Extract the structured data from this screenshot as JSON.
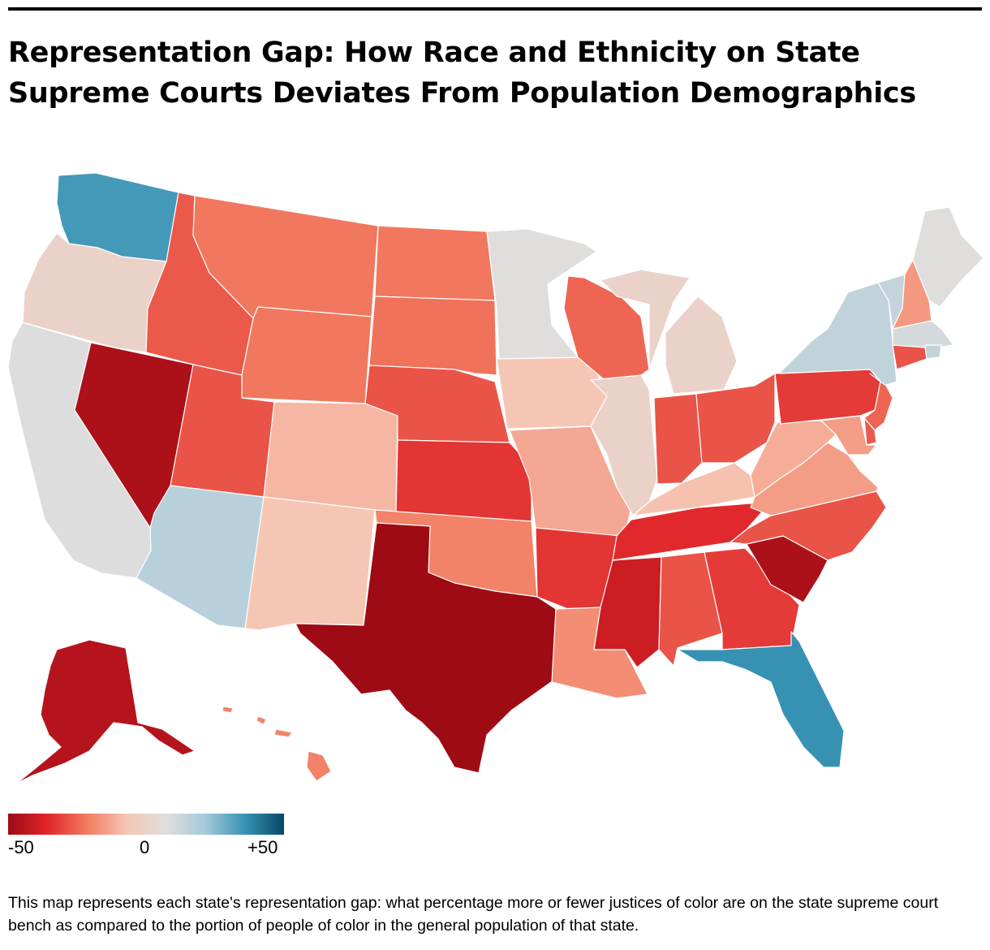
{
  "header": {
    "title": "Representation Gap: How Race and Ethnicity on State Supreme Courts Deviates From Population Demographics"
  },
  "legend": {
    "min_label": "-50",
    "mid_label": "0",
    "max_label": "+50",
    "min_value": -50,
    "max_value": 50,
    "colors": [
      "#9e0b14",
      "#e0252a",
      "#f27b60",
      "#f6c6b4",
      "#dfdedc",
      "#a6cadb",
      "#3792b3",
      "#084868"
    ]
  },
  "chart_data": {
    "type": "choropleth",
    "value_range": [
      -50,
      50
    ],
    "states": [
      {
        "state": "WA",
        "value": 34
      },
      {
        "state": "OR",
        "value": 0
      },
      {
        "state": "CA",
        "value": 8
      },
      {
        "state": "NV",
        "value": -47
      },
      {
        "state": "ID",
        "value": -27
      },
      {
        "state": "MT",
        "value": -22
      },
      {
        "state": "WY",
        "value": -22
      },
      {
        "state": "UT",
        "value": -28
      },
      {
        "state": "AZ",
        "value": 17
      },
      {
        "state": "CO",
        "value": -10
      },
      {
        "state": "NM",
        "value": -7
      },
      {
        "state": "ND",
        "value": -22
      },
      {
        "state": "SD",
        "value": -23
      },
      {
        "state": "NE",
        "value": -28
      },
      {
        "state": "KS",
        "value": -33
      },
      {
        "state": "OK",
        "value": -20
      },
      {
        "state": "TX",
        "value": -55
      },
      {
        "state": "MN",
        "value": 7
      },
      {
        "state": "IA",
        "value": -7
      },
      {
        "state": "MO",
        "value": -13
      },
      {
        "state": "AR",
        "value": -33
      },
      {
        "state": "LA",
        "value": -18
      },
      {
        "state": "WI",
        "value": -25
      },
      {
        "state": "IL",
        "value": 0
      },
      {
        "state": "MI",
        "value": 0
      },
      {
        "state": "IN",
        "value": -28
      },
      {
        "state": "OH",
        "value": -28
      },
      {
        "state": "KY",
        "value": -8
      },
      {
        "state": "TN",
        "value": -35
      },
      {
        "state": "MS",
        "value": -40
      },
      {
        "state": "AL",
        "value": -28
      },
      {
        "state": "GA",
        "value": -32
      },
      {
        "state": "FL",
        "value": 36
      },
      {
        "state": "SC",
        "value": -47
      },
      {
        "state": "NC",
        "value": -28
      },
      {
        "state": "VA",
        "value": -15
      },
      {
        "state": "WV",
        "value": -12
      },
      {
        "state": "PA",
        "value": -32
      },
      {
        "state": "NY",
        "value": 15
      },
      {
        "state": "VT",
        "value": 14
      },
      {
        "state": "NH",
        "value": -16
      },
      {
        "state": "ME",
        "value": 7
      },
      {
        "state": "MA",
        "value": 10
      },
      {
        "state": "RI",
        "value": 15
      },
      {
        "state": "CT",
        "value": -28
      },
      {
        "state": "NJ",
        "value": -25
      },
      {
        "state": "DE",
        "value": -27
      },
      {
        "state": "MD",
        "value": -15
      },
      {
        "state": "AK",
        "value": -45
      },
      {
        "state": "HI",
        "value": -20
      }
    ]
  },
  "footer": {
    "caption": "This map represents each state's representation gap: what percentage more or fewer justices of color are on the state supreme court bench as compared to the portion of people of color in the general population of that state."
  }
}
